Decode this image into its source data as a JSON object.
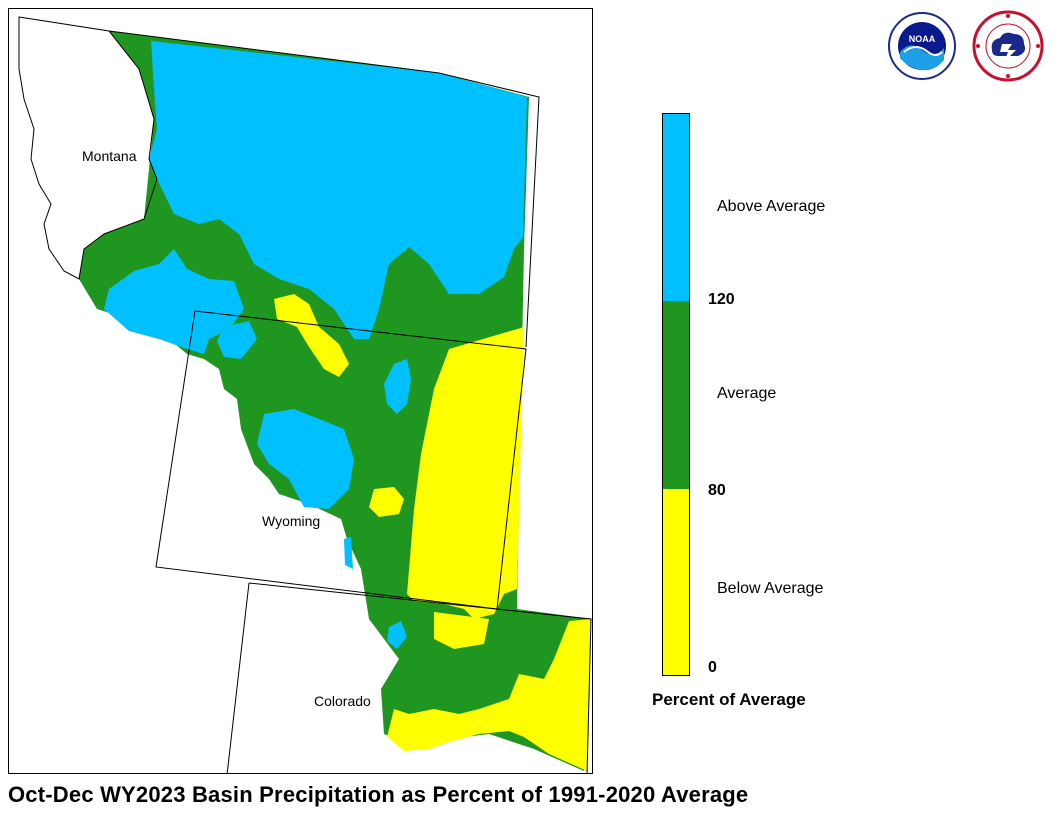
{
  "title": "Oct-Dec WY2023 Basin Precipitation as Percent of 1991-2020 Average",
  "map": {
    "state_labels": {
      "montana": "Montana",
      "wyoming": "Wyoming",
      "colorado": "Colorado"
    }
  },
  "legend": {
    "title": "Percent of Average",
    "categories": [
      {
        "label": "Above Average",
        "color": "#00c0ff"
      },
      {
        "label": "Average",
        "color": "#1f961f"
      },
      {
        "label": "Below Average",
        "color": "#ffff00"
      }
    ],
    "ticks": [
      "120",
      "80",
      "0"
    ]
  },
  "logos": [
    "noaa-logo",
    "national-weather-service-logo"
  ]
}
